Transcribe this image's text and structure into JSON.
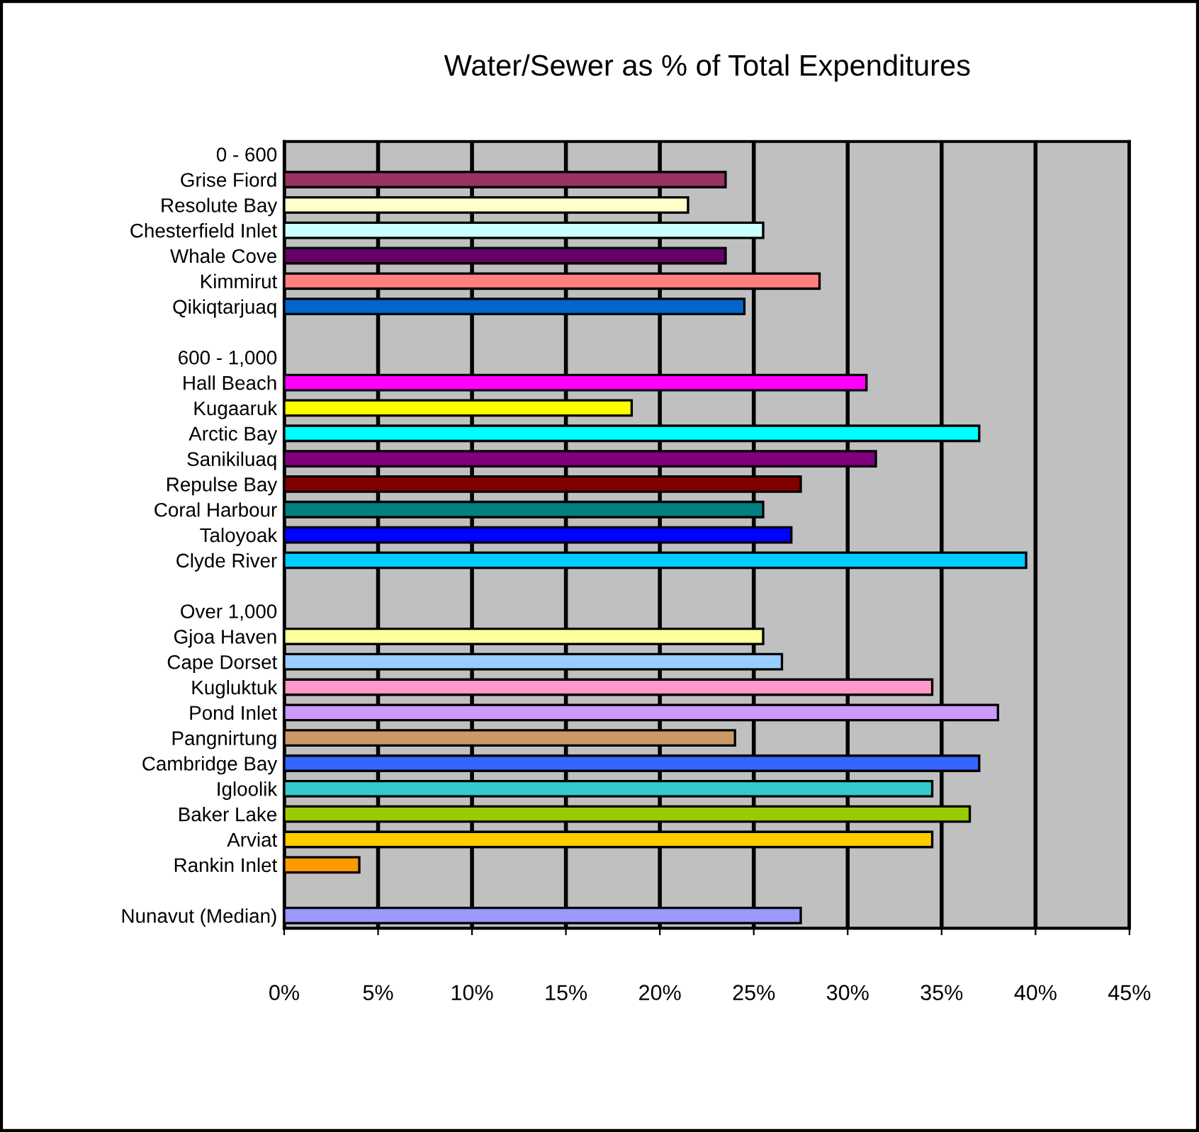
{
  "chart_data": {
    "type": "bar",
    "orientation": "horizontal",
    "title": "Water/Sewer as % of Total Expenditures",
    "categories": [
      "0 - 600",
      "Grise Fiord",
      "Resolute Bay",
      "Chesterfield Inlet",
      "Whale Cove",
      "Kimmirut",
      "Qikiqtarjuaq",
      null,
      "600 - 1,000",
      "Hall Beach",
      "Kugaaruk",
      "Arctic Bay",
      "Sanikiluaq",
      "Repulse Bay",
      "Coral Harbour",
      "Taloyoak",
      "Clyde River",
      null,
      "Over 1,000",
      "Gjoa Haven",
      "Cape Dorset",
      "Kugluktuk",
      "Pond Inlet",
      "Pangnirtung",
      "Cambridge Bay",
      "Igloolik",
      "Baker Lake",
      "Arviat",
      "Rankin Inlet",
      null,
      "Nunavut (Median)"
    ],
    "values": [
      null,
      23.5,
      21.5,
      25.5,
      23.5,
      28.5,
      24.5,
      null,
      null,
      31,
      18.5,
      37,
      31.5,
      27.5,
      25.5,
      27,
      39.5,
      null,
      null,
      25.5,
      26.5,
      34.5,
      38,
      24,
      37,
      34.5,
      36.5,
      34.5,
      4,
      null,
      27.5
    ],
    "colors": [
      "#000000",
      "#993366",
      "#ffffcc",
      "#ccffff",
      "#660066",
      "#ff8080",
      "#0066cc",
      "#000000",
      "#000000",
      "#ff00ff",
      "#ffff00",
      "#00ffff",
      "#800080",
      "#800000",
      "#008080",
      "#0000ff",
      "#00ccff",
      "#000000",
      "#000000",
      "#ffff99",
      "#99ccff",
      "#ff99cc",
      "#cc99ff",
      "#cc9966",
      "#3366ff",
      "#33cccc",
      "#99cc00",
      "#ffcc00",
      "#ff9900",
      "#000000",
      "#9999ff"
    ],
    "xlim": [
      0,
      45
    ],
    "xticks": [
      {
        "value": 0,
        "label": "0%"
      },
      {
        "value": 5,
        "label": "5%"
      },
      {
        "value": 10,
        "label": "10%"
      },
      {
        "value": 15,
        "label": "15%"
      },
      {
        "value": 20,
        "label": "20%"
      },
      {
        "value": 25,
        "label": "25%"
      },
      {
        "value": 30,
        "label": "30%"
      },
      {
        "value": 35,
        "label": "35%"
      },
      {
        "value": 40,
        "label": "40%"
      },
      {
        "value": 45,
        "label": "45%"
      }
    ],
    "grid": "x",
    "legend": false
  }
}
